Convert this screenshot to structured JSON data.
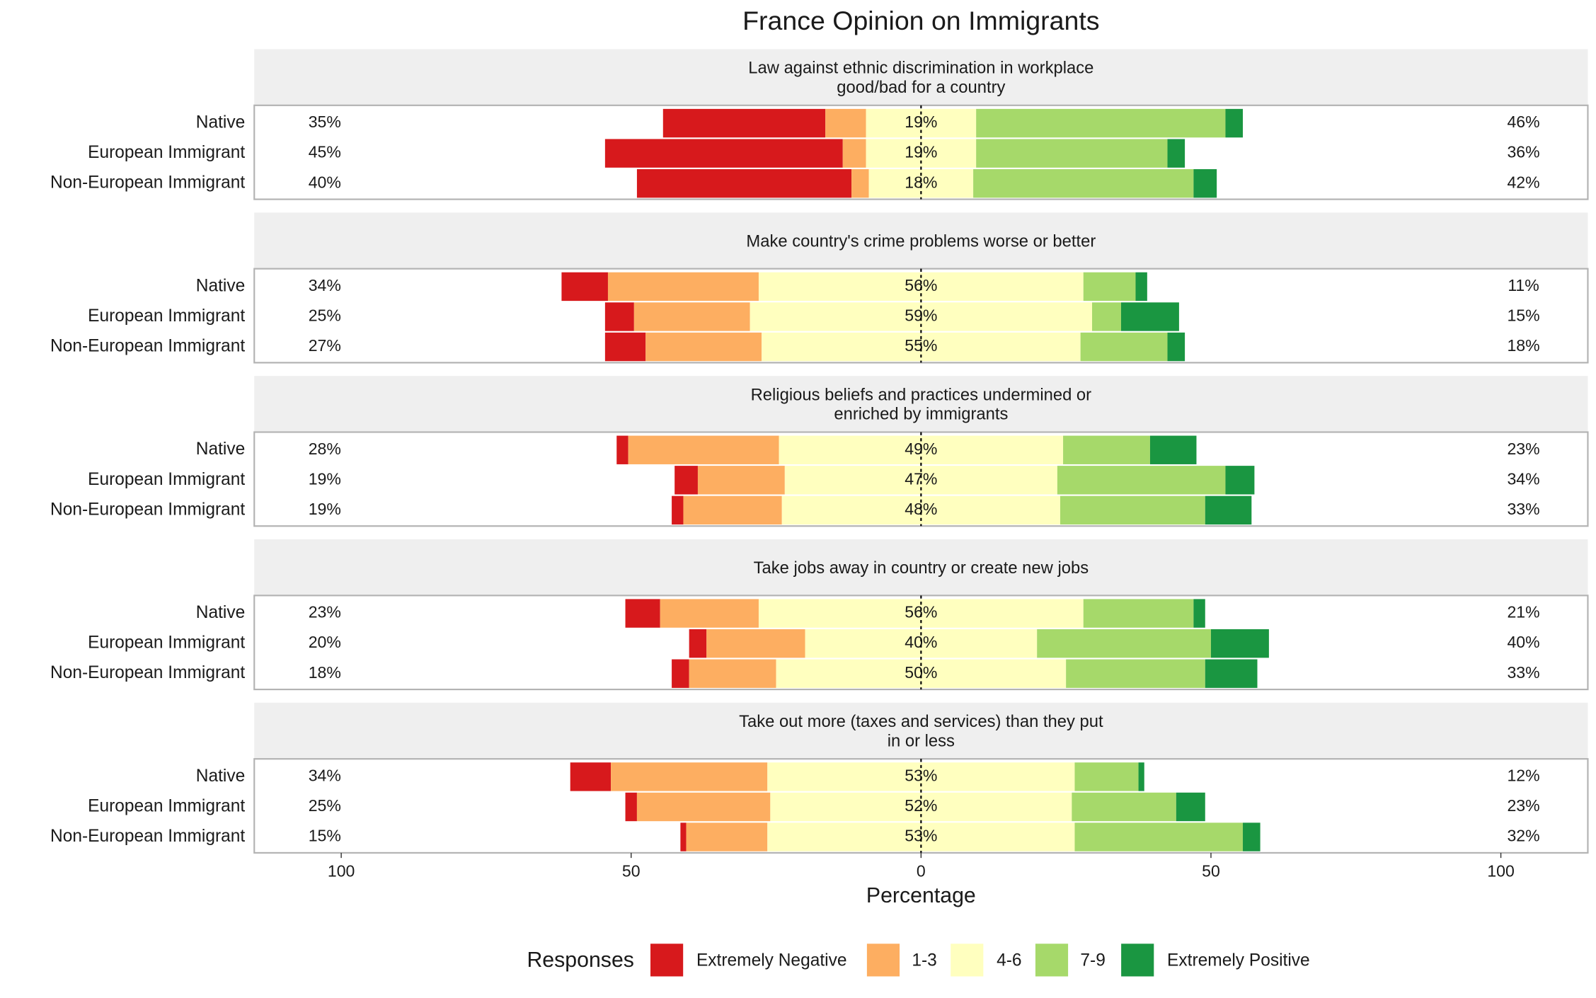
{
  "chart_data": {
    "type": "diverging_bar",
    "title": "France Opinion on Immigrants",
    "xlabel": "Percentage",
    "xlim": [
      -115,
      115
    ],
    "xticks": [
      {
        "value": -100,
        "label": "100"
      },
      {
        "value": -50,
        "label": "50"
      },
      0,
      50,
      100
    ],
    "legend": {
      "title": "Responses",
      "position": "bottom"
    },
    "responses": [
      {
        "name": "Extremely Negative",
        "color": "#d7191c"
      },
      {
        "name": "1-3",
        "color": "#fdae61"
      },
      {
        "name": "4-6",
        "color": "#ffffbf"
      },
      {
        "name": "7-9",
        "color": "#a6d96a"
      },
      {
        "name": "Extremely Positive",
        "color": "#1a9641"
      }
    ],
    "facets": [
      {
        "title": "Law against ethnic discrimination in workplace\ngood/bad for a country",
        "categories": [
          "Native",
          "European Immigrant",
          "Non-European Immigrant"
        ],
        "series": [
          {
            "values": [
              28,
              41,
              37
            ]
          },
          {
            "values": [
              7,
              4,
              3
            ]
          },
          {
            "values": [
              19,
              19,
              18
            ],
            "value_labels": [
              "19%",
              "19%",
              "18%"
            ]
          },
          {
            "values": [
              43,
              33,
              38
            ]
          },
          {
            "values": [
              3,
              3,
              4
            ]
          }
        ],
        "negative_labels": [
          "35%",
          "45%",
          "40%"
        ],
        "positive_labels": [
          "46%",
          "36%",
          "42%"
        ]
      },
      {
        "title": "Make country's crime problems worse or better",
        "categories": [
          "Native",
          "European Immigrant",
          "Non-European Immigrant"
        ],
        "series": [
          {
            "values": [
              8,
              5,
              7
            ]
          },
          {
            "values": [
              26,
              20,
              20
            ]
          },
          {
            "values": [
              56,
              59,
              55
            ],
            "value_labels": [
              "56%",
              "59%",
              "55%"
            ]
          },
          {
            "values": [
              9,
              5,
              15
            ]
          },
          {
            "values": [
              2,
              10,
              3
            ]
          }
        ],
        "negative_labels": [
          "34%",
          "25%",
          "27%"
        ],
        "positive_labels": [
          "11%",
          "15%",
          "18%"
        ]
      },
      {
        "title": "Religious beliefs and practices undermined or\nenriched by immigrants",
        "categories": [
          "Native",
          "European Immigrant",
          "Non-European Immigrant"
        ],
        "series": [
          {
            "values": [
              2,
              4,
              2
            ]
          },
          {
            "values": [
              26,
              15,
              17
            ]
          },
          {
            "values": [
              49,
              47,
              48
            ],
            "value_labels": [
              "49%",
              "47%",
              "48%"
            ]
          },
          {
            "values": [
              15,
              29,
              25
            ]
          },
          {
            "values": [
              8,
              5,
              8
            ]
          }
        ],
        "negative_labels": [
          "28%",
          "19%",
          "19%"
        ],
        "positive_labels": [
          "23%",
          "34%",
          "33%"
        ]
      },
      {
        "title": "Take jobs away in country or create new jobs",
        "categories": [
          "Native",
          "European Immigrant",
          "Non-European Immigrant"
        ],
        "series": [
          {
            "values": [
              6,
              3,
              3
            ]
          },
          {
            "values": [
              17,
              17,
              15
            ]
          },
          {
            "values": [
              56,
              40,
              50
            ],
            "value_labels": [
              "56%",
              "40%",
              "50%"
            ]
          },
          {
            "values": [
              19,
              30,
              24
            ]
          },
          {
            "values": [
              2,
              10,
              9
            ]
          }
        ],
        "negative_labels": [
          "23%",
          "20%",
          "18%"
        ],
        "positive_labels": [
          "21%",
          "40%",
          "33%"
        ]
      },
      {
        "title": "Take out more (taxes and services) than they put\nin or less",
        "categories": [
          "Native",
          "European Immigrant",
          "Non-European Immigrant"
        ],
        "series": [
          {
            "values": [
              7,
              2,
              1
            ]
          },
          {
            "values": [
              27,
              23,
              14
            ]
          },
          {
            "values": [
              53,
              52,
              53
            ],
            "value_labels": [
              "53%",
              "52%",
              "53%"
            ]
          },
          {
            "values": [
              11,
              18,
              29
            ]
          },
          {
            "values": [
              1,
              5,
              3
            ]
          }
        ],
        "negative_labels": [
          "34%",
          "25%",
          "15%"
        ],
        "positive_labels": [
          "12%",
          "23%",
          "32%"
        ]
      }
    ]
  }
}
